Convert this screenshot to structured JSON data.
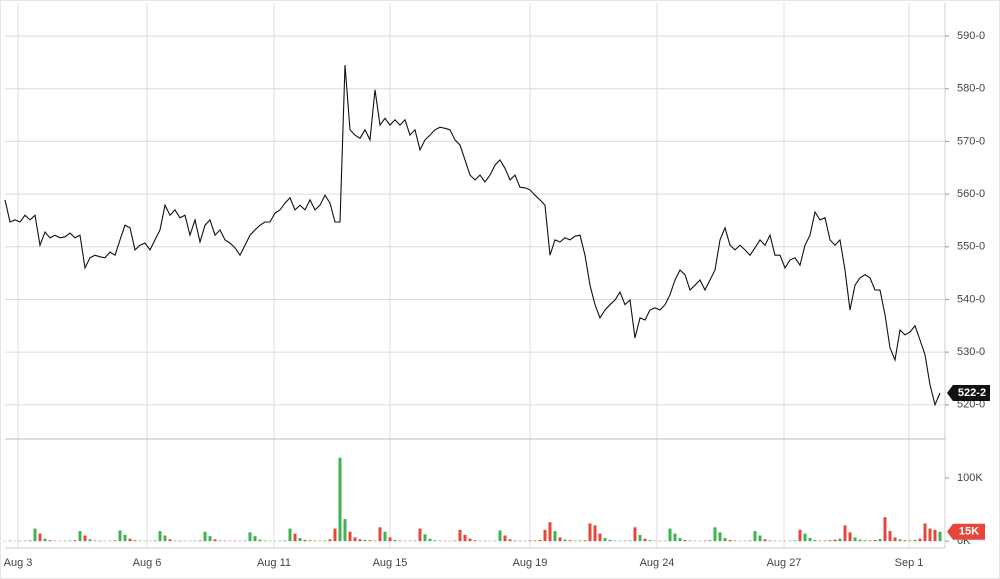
{
  "chart_data": [
    {
      "type": "line",
      "xlim": [
        0,
        188
      ],
      "ylim": [
        513.7,
        595.9
      ],
      "yticks": [
        {
          "value": 520,
          "label": "520-0"
        },
        {
          "value": 530,
          "label": "530-0"
        },
        {
          "value": 540,
          "label": "540-0"
        },
        {
          "value": 550,
          "label": "550-0"
        },
        {
          "value": 560,
          "label": "560-0"
        },
        {
          "value": 570,
          "label": "570-0"
        },
        {
          "value": 580,
          "label": "580-0"
        },
        {
          "value": 590,
          "label": "590-0"
        }
      ],
      "grid": true,
      "series": [
        {
          "color": "#111111",
          "values": [
            558.9,
            554.7,
            555.1,
            554.7,
            556.0,
            555.1,
            556.0,
            550.3,
            552.8,
            551.7,
            552.2,
            551.7,
            551.9,
            552.6,
            551.7,
            552.2,
            546.0,
            547.9,
            548.4,
            548.1,
            547.9,
            549.0,
            548.4,
            551.3,
            554.1,
            553.6,
            549.4,
            550.3,
            550.7,
            549.4,
            551.3,
            553.2,
            557.9,
            556.0,
            557.0,
            555.5,
            556.0,
            552.2,
            555.1,
            550.9,
            554.1,
            555.1,
            552.2,
            553.2,
            551.3,
            550.7,
            549.8,
            548.4,
            550.3,
            552.2,
            553.2,
            554.1,
            554.7,
            554.7,
            556.4,
            557.0,
            558.3,
            559.3,
            557.0,
            557.9,
            557.0,
            558.9,
            557.0,
            557.9,
            559.8,
            558.3,
            554.7,
            554.7,
            584.5,
            572.2,
            571.2,
            570.6,
            572.2,
            570.3,
            579.8,
            573.1,
            574.4,
            573.1,
            574.1,
            573.1,
            574.1,
            571.2,
            572.2,
            568.4,
            570.3,
            571.2,
            572.2,
            572.7,
            572.5,
            572.2,
            570.3,
            569.3,
            566.5,
            563.6,
            562.7,
            563.6,
            562.3,
            563.6,
            565.5,
            566.5,
            564.9,
            562.7,
            563.6,
            561.3,
            561.2,
            560.8,
            559.8,
            558.9,
            557.9,
            548.4,
            551.3,
            550.9,
            551.7,
            551.3,
            552.0,
            552.2,
            548.4,
            542.7,
            539.0,
            536.5,
            538.0,
            539.0,
            539.9,
            541.4,
            539.0,
            539.9,
            532.7,
            536.5,
            536.1,
            538.0,
            538.4,
            538.0,
            539.0,
            540.9,
            543.7,
            545.6,
            544.7,
            541.8,
            542.7,
            543.7,
            541.8,
            543.7,
            545.6,
            551.3,
            553.6,
            550.3,
            549.4,
            550.3,
            549.4,
            548.4,
            549.8,
            551.3,
            550.3,
            552.2,
            548.4,
            548.4,
            546.0,
            547.5,
            547.9,
            546.5,
            550.3,
            552.2,
            556.6,
            555.1,
            555.5,
            551.3,
            550.3,
            551.3,
            545.6,
            538.0,
            542.7,
            544.1,
            544.7,
            544.1,
            541.8,
            541.8,
            537.1,
            530.8,
            528.5,
            534.2,
            533.3,
            533.8,
            535.0,
            532.3,
            529.5,
            523.8,
            520.0,
            522.25
          ],
          "value_labels": [
            null,
            null,
            null,
            null,
            null,
            null,
            null,
            null,
            null,
            null,
            null,
            null,
            null,
            null,
            null,
            null,
            null,
            null,
            null,
            null,
            null,
            null,
            null,
            null,
            null,
            null,
            null,
            null,
            null,
            null,
            null,
            null,
            null,
            null,
            null,
            null,
            null,
            null,
            null,
            null,
            null,
            null,
            null,
            null,
            null,
            null,
            null,
            null,
            null,
            null,
            null,
            null,
            null,
            null,
            null,
            null,
            null,
            null,
            null,
            null,
            null,
            null,
            null,
            null,
            null,
            null,
            null,
            null,
            null,
            null,
            null,
            null,
            null,
            null,
            null,
            null,
            null,
            null,
            null,
            null,
            null,
            null,
            null,
            null,
            null,
            null,
            null,
            null,
            null,
            null,
            null,
            null,
            null,
            null,
            null,
            null,
            null,
            null,
            null,
            null,
            null,
            null,
            null,
            null,
            null,
            null,
            null,
            null,
            null,
            null,
            null,
            null,
            null,
            null,
            null,
            null,
            null,
            null,
            null,
            null,
            null,
            null,
            null,
            null,
            null,
            null,
            null,
            null,
            null,
            null,
            null,
            null,
            null,
            null,
            null,
            null,
            null,
            null,
            null,
            null,
            null,
            null,
            null,
            null,
            null,
            null,
            null,
            null,
            null,
            null,
            null,
            null,
            null,
            null,
            null,
            null,
            null,
            null,
            null,
            null,
            null,
            null,
            null,
            null,
            null,
            null,
            null,
            null,
            null,
            null,
            null,
            null,
            null,
            null,
            null,
            null,
            null,
            null,
            null,
            null,
            null,
            null,
            null,
            null,
            null,
            null,
            null,
            "522-2"
          ]
        }
      ]
    },
    {
      "type": "bar",
      "xlim": [
        0,
        188
      ],
      "ylim": [
        -6000,
        160000
      ],
      "yticks": [
        {
          "value": 0,
          "label": "0K"
        },
        {
          "value": 100000,
          "label": "100K"
        }
      ],
      "xticks": [
        {
          "value": 2.6,
          "label": "Aug 3"
        },
        {
          "value": 28.4,
          "label": "Aug 6"
        },
        {
          "value": 53.8,
          "label": "Aug 11"
        },
        {
          "value": 77,
          "label": "Aug 15"
        },
        {
          "value": 105,
          "label": "Aug 19"
        },
        {
          "value": 130.4,
          "label": "Aug 24"
        },
        {
          "value": 155.8,
          "label": "Aug 27"
        },
        {
          "value": 180.8,
          "label": "Sep 1"
        }
      ],
      "up_color": "#3fb34f",
      "down_color": "#e5473b",
      "series": [
        {
          "color": "#e5473b",
          "values": [
            500,
            800,
            600,
            700,
            900,
            1200,
            20000,
            12000,
            4000,
            1500,
            800,
            600,
            900,
            1000,
            1500,
            16000,
            9000,
            3000,
            1200,
            800,
            600,
            900,
            1400,
            17000,
            10000,
            4000,
            1500,
            900,
            700,
            600,
            1200,
            16000,
            9000,
            3000,
            1000,
            800,
            700,
            600,
            900,
            1200,
            15000,
            8000,
            3000,
            1200,
            900,
            700,
            800,
            600,
            1000,
            14000,
            8000,
            2500,
            1000,
            700,
            600,
            900,
            1200,
            20000,
            12000,
            5000,
            2000,
            1500,
            1000,
            900,
            1200,
            3000,
            20000,
            132000,
            35000,
            15000,
            6000,
            3000,
            2000,
            1500,
            1000,
            22000,
            15000,
            6000,
            2000,
            1000,
            800,
            700,
            1000,
            20000,
            11000,
            4000,
            1500,
            900,
            700,
            600,
            1000,
            18000,
            10000,
            4000,
            1500,
            800,
            700,
            600,
            900,
            17000,
            9000,
            3000,
            1200,
            800,
            700,
            1000,
            1200,
            2000,
            18000,
            30000,
            16000,
            6000,
            2500,
            1500,
            1000,
            1200,
            1500,
            28000,
            25000,
            12000,
            5000,
            2000,
            1000,
            800,
            900,
            1200,
            22000,
            10000,
            4000,
            1500,
            800,
            700,
            900,
            20000,
            12000,
            5000,
            2000,
            1000,
            800,
            700,
            1000,
            1500,
            22000,
            14000,
            5000,
            2000,
            1000,
            800,
            700,
            900,
            16000,
            9000,
            3000,
            1200,
            800,
            700,
            600,
            900,
            1200,
            18000,
            12000,
            5000,
            2000,
            1000,
            1200,
            1500,
            2500,
            4000,
            25000,
            14000,
            6000,
            2500,
            1500,
            1200,
            2000,
            3500,
            38000,
            16000,
            6000,
            3000,
            1500,
            1200,
            2000,
            4000,
            28000,
            20000,
            18000,
            15000
          ],
          "value_labels": [
            null,
            null,
            null,
            null,
            null,
            null,
            null,
            null,
            null,
            null,
            null,
            null,
            null,
            null,
            null,
            null,
            null,
            null,
            null,
            null,
            null,
            null,
            null,
            null,
            null,
            null,
            null,
            null,
            null,
            null,
            null,
            null,
            null,
            null,
            null,
            null,
            null,
            null,
            null,
            null,
            null,
            null,
            null,
            null,
            null,
            null,
            null,
            null,
            null,
            null,
            null,
            null,
            null,
            null,
            null,
            null,
            null,
            null,
            null,
            null,
            null,
            null,
            null,
            null,
            null,
            null,
            null,
            null,
            null,
            null,
            null,
            null,
            null,
            null,
            null,
            null,
            null,
            null,
            null,
            null,
            null,
            null,
            null,
            null,
            null,
            null,
            null,
            null,
            null,
            null,
            null,
            null,
            null,
            null,
            null,
            null,
            null,
            null,
            null,
            null,
            null,
            null,
            null,
            null,
            null,
            null,
            null,
            null,
            null,
            null,
            null,
            null,
            null,
            null,
            null,
            null,
            null,
            null,
            null,
            null,
            null,
            null,
            null,
            null,
            null,
            null,
            null,
            null,
            null,
            null,
            null,
            null,
            null,
            null,
            null,
            null,
            null,
            null,
            null,
            null,
            null,
            null,
            null,
            null,
            null,
            null,
            null,
            null,
            null,
            null,
            null,
            null,
            null,
            null,
            null,
            null,
            null,
            null,
            null,
            null,
            null,
            null,
            null,
            null,
            null,
            null,
            null,
            null,
            null,
            null,
            null,
            null,
            null,
            null,
            null,
            null,
            null,
            null,
            null,
            null,
            null,
            null,
            null,
            null,
            null,
            null,
            null,
            "15K"
          ]
        }
      ]
    }
  ]
}
